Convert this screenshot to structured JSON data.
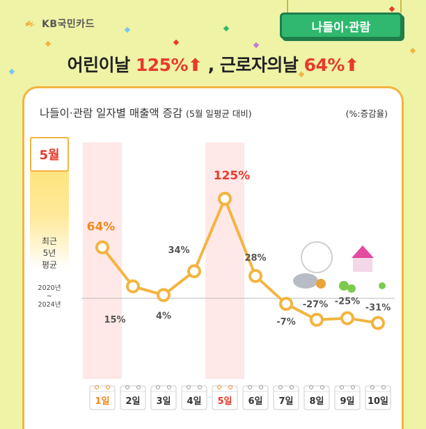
{
  "brand": {
    "name": "KB국민카드"
  },
  "category": "나들이·관람",
  "headline": {
    "part1": "어린이날 ",
    "value1": "125%",
    "part2": " , 근로자의날 ",
    "value2": "64%",
    "arrow": "⬆"
  },
  "chart_header": {
    "title": "나들이·관람 일자별 매출액 증감",
    "subtitle": "(5월 일평균 대비)",
    "unit": "(%:증감율)"
  },
  "month_badge": "5월",
  "avg_label": {
    "line1": "최근",
    "line2": "5년",
    "line3": "평균",
    "years_from": "2020년",
    "tilde": "~",
    "years_to": "2024년"
  },
  "colors": {
    "accent": "#e83a2c",
    "line": "#f3b43f",
    "highlight": "#fde0e0",
    "background": "#eef3a6",
    "badge": "#2fb86e"
  },
  "chart_data": {
    "type": "line",
    "title": "나들이·관람 일자별 매출액 증감",
    "subtitle": "(5월 일평균 대비)",
    "unit": "(%:증감율)",
    "categories": [
      "1일",
      "2일",
      "3일",
      "4일",
      "5일",
      "6일",
      "7일",
      "8일",
      "9일",
      "10일"
    ],
    "values": [
      64,
      15,
      4,
      34,
      125,
      28,
      -7,
      -27,
      -25,
      -31
    ],
    "labels": [
      "64%",
      "15%",
      "4%",
      "34%",
      "125%",
      "28%",
      "-7%",
      "-27%",
      "-25%",
      "-31%"
    ],
    "highlighted": [
      "1일",
      "5일"
    ],
    "baseline": 0,
    "xlabel": "",
    "ylabel": ""
  }
}
